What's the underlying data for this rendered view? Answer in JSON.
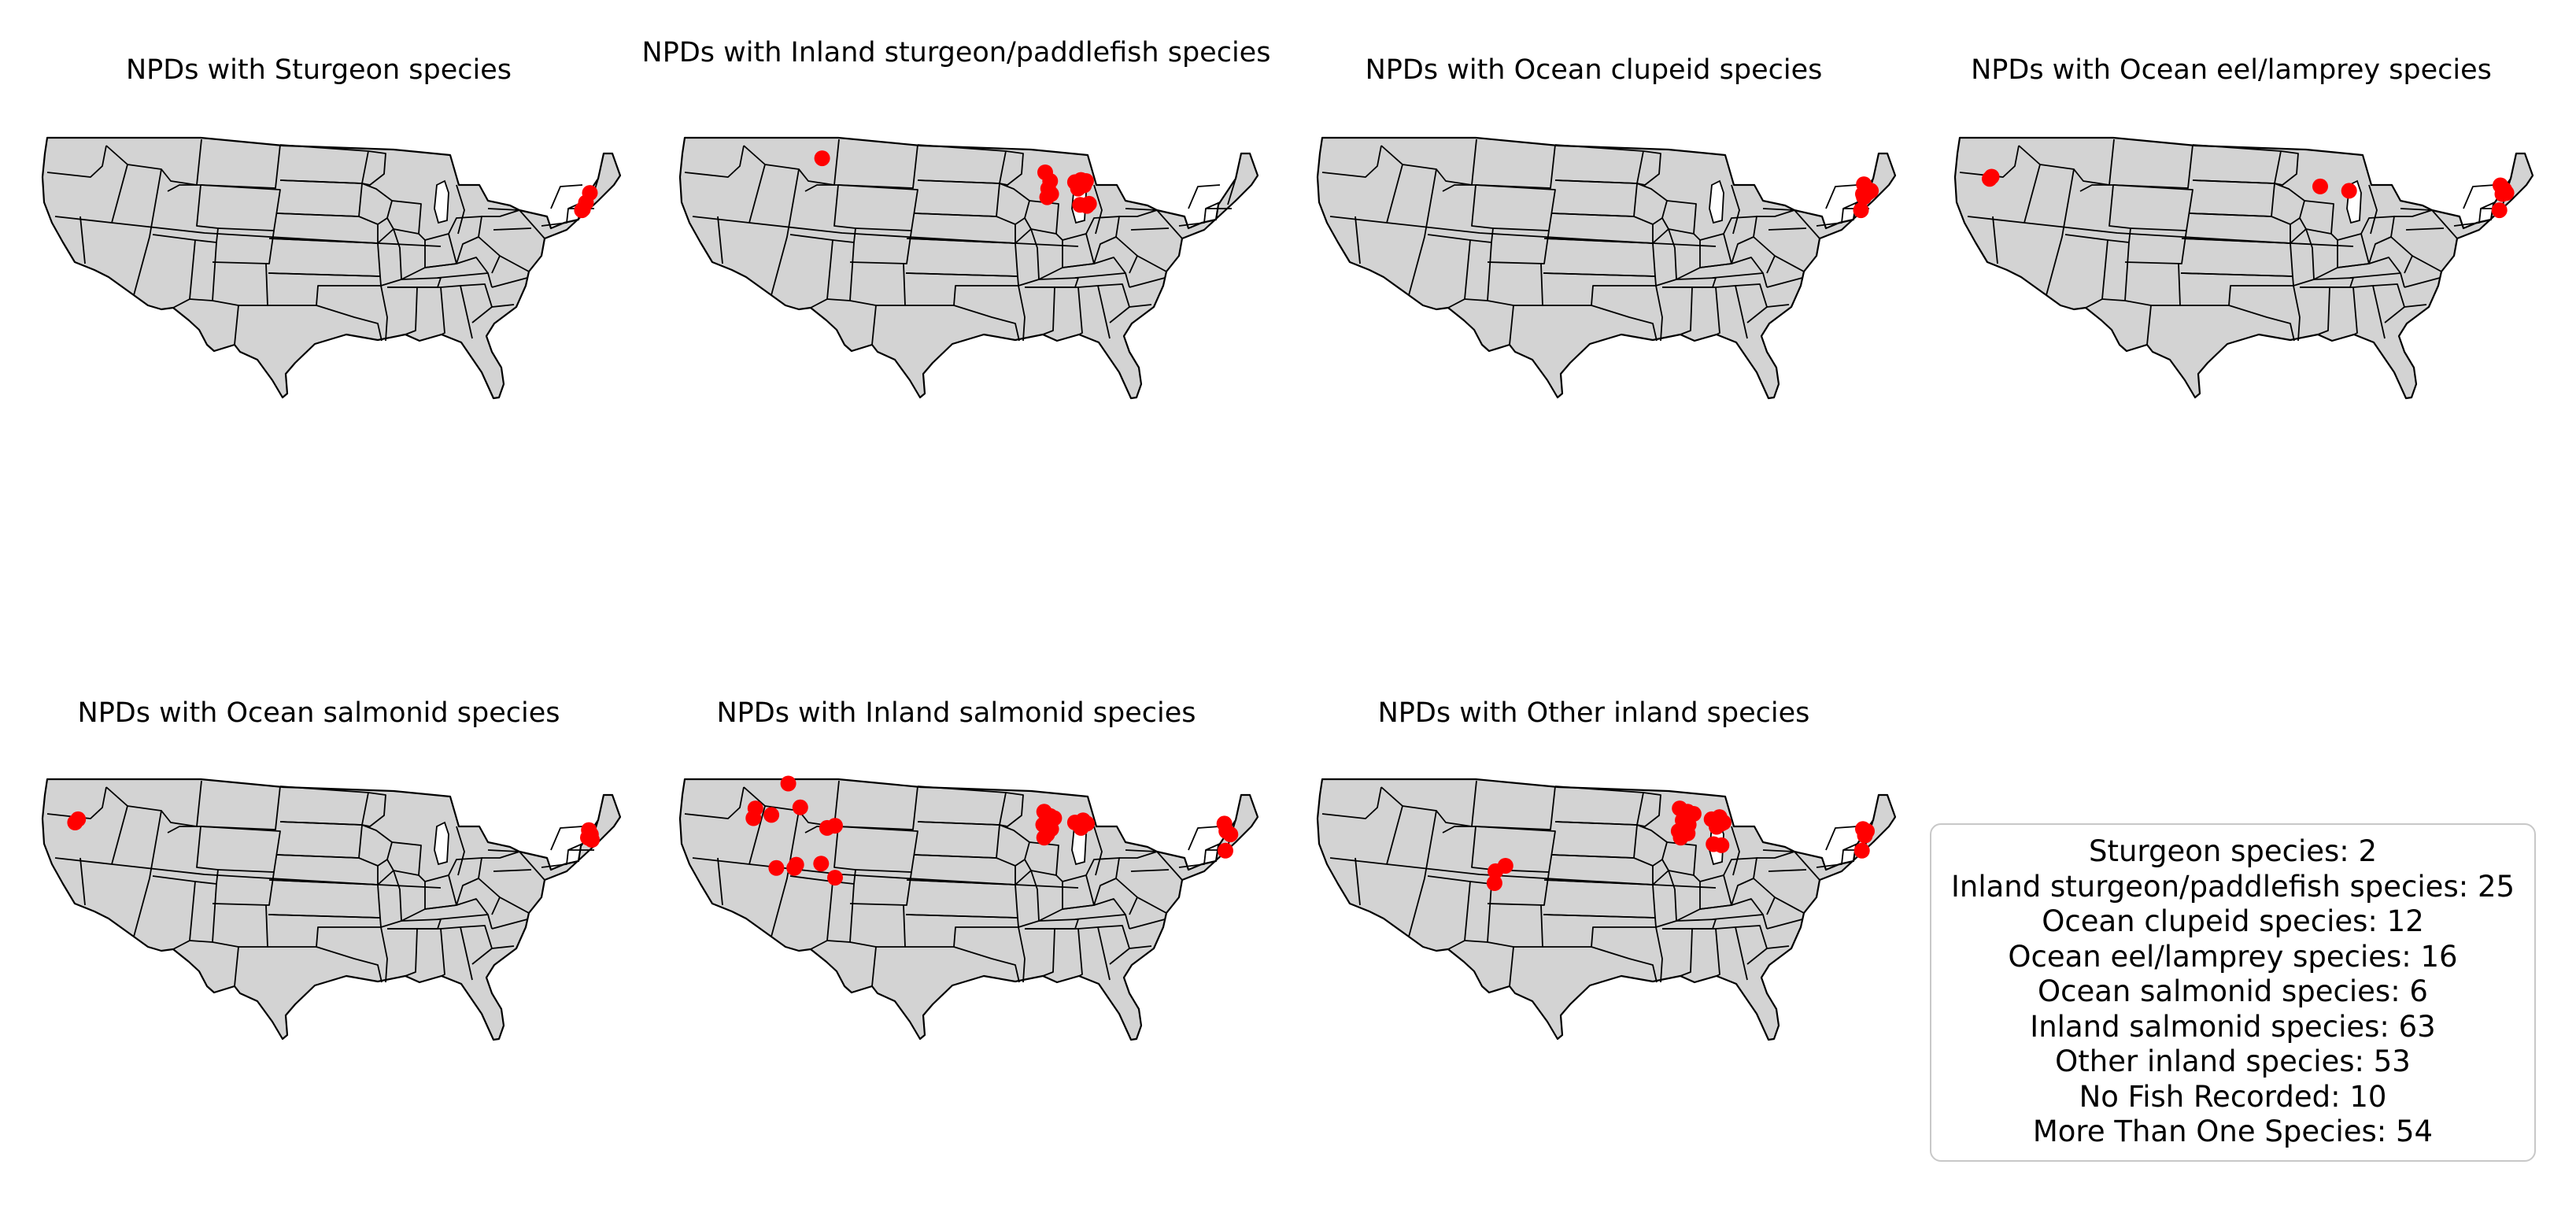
{
  "panels": [
    {
      "title": "NPDs with Sturgeon species",
      "points": [
        [
          -70.2,
          43.9
        ],
        [
          -70.6,
          43.0
        ],
        [
          -71.0,
          42.3
        ],
        [
          -70.9,
          42.4
        ]
      ]
    },
    {
      "title": "NPDs with Inland sturgeon/paddlefish species",
      "points": [
        [
          -110.9,
          47.1
        ],
        [
          -88.5,
          45.8
        ],
        [
          -88.0,
          45.0
        ],
        [
          -88.2,
          44.3
        ],
        [
          -87.9,
          43.8
        ],
        [
          -88.3,
          43.5
        ],
        [
          -85.5,
          44.9
        ],
        [
          -84.9,
          45.1
        ],
        [
          -84.4,
          45.0
        ],
        [
          -85.2,
          44.3
        ],
        [
          -84.6,
          44.6
        ],
        [
          -84.1,
          42.9
        ],
        [
          -85.0,
          42.8
        ],
        [
          -84.3,
          42.7
        ]
      ]
    },
    {
      "title": "NPDs with Ocean clupeid species",
      "points": [
        [
          -70.3,
          44.7
        ],
        [
          -70.0,
          44.3
        ],
        [
          -69.6,
          44.1
        ],
        [
          -70.4,
          43.8
        ],
        [
          -69.9,
          43.9
        ],
        [
          -70.3,
          43.5
        ],
        [
          -70.6,
          42.3
        ]
      ]
    },
    {
      "title": "NPDs with Ocean eel/lamprey species",
      "points": [
        [
          -121.5,
          45.4
        ],
        [
          -121.7,
          45.2
        ],
        [
          -88.5,
          44.5
        ],
        [
          -85.6,
          44.1
        ],
        [
          -70.4,
          44.6
        ],
        [
          -70.0,
          44.2
        ],
        [
          -70.2,
          43.8
        ],
        [
          -69.8,
          43.9
        ],
        [
          -70.5,
          42.3
        ]
      ]
    },
    {
      "title": "NPDs with Ocean salmonid species",
      "points": [
        [
          -121.6,
          45.3
        ],
        [
          -121.9,
          45.0
        ],
        [
          -70.3,
          44.3
        ],
        [
          -70.1,
          43.9
        ],
        [
          -70.4,
          43.6
        ],
        [
          -70.0,
          43.4
        ]
      ]
    },
    {
      "title": "NPDs with Inland salmonid species",
      "points": [
        [
          -114.3,
          48.6
        ],
        [
          -117.6,
          46.3
        ],
        [
          -116.0,
          45.7
        ],
        [
          -117.8,
          45.4
        ],
        [
          -113.1,
          46.4
        ],
        [
          -109.6,
          44.7
        ],
        [
          -110.4,
          44.5
        ],
        [
          -115.5,
          40.8
        ],
        [
          -113.5,
          41.1
        ],
        [
          -113.7,
          40.8
        ],
        [
          -111.0,
          41.2
        ],
        [
          -109.6,
          39.9
        ],
        [
          -88.6,
          46.0
        ],
        [
          -88.0,
          45.6
        ],
        [
          -87.6,
          45.4
        ],
        [
          -88.7,
          44.8
        ],
        [
          -87.9,
          44.4
        ],
        [
          -88.3,
          43.9
        ],
        [
          -88.6,
          43.6
        ],
        [
          -85.5,
          45.0
        ],
        [
          -84.7,
          45.2
        ],
        [
          -84.3,
          44.9
        ],
        [
          -84.9,
          44.5
        ],
        [
          -70.5,
          44.9
        ],
        [
          -70.3,
          44.2
        ],
        [
          -69.9,
          43.9
        ],
        [
          -70.4,
          42.4
        ]
      ]
    },
    {
      "title": "NPDs with Other inland species",
      "points": [
        [
          -106.3,
          41.0
        ],
        [
          -107.3,
          40.5
        ],
        [
          -107.4,
          39.4
        ],
        [
          -88.8,
          46.3
        ],
        [
          -88.0,
          46.0
        ],
        [
          -87.4,
          45.8
        ],
        [
          -88.5,
          45.2
        ],
        [
          -87.9,
          44.8
        ],
        [
          -88.9,
          44.2
        ],
        [
          -88.0,
          44.0
        ],
        [
          -88.7,
          43.6
        ],
        [
          -85.6,
          45.3
        ],
        [
          -84.8,
          45.5
        ],
        [
          -84.4,
          45.0
        ],
        [
          -85.1,
          44.6
        ],
        [
          -84.6,
          44.9
        ],
        [
          -85.4,
          43.0
        ],
        [
          -84.6,
          42.9
        ],
        [
          -70.4,
          44.4
        ],
        [
          -70.0,
          44.2
        ],
        [
          -70.2,
          43.8
        ],
        [
          -70.5,
          42.4
        ]
      ]
    }
  ],
  "summary": {
    "lines": [
      "Sturgeon species: 2",
      "Inland sturgeon/paddlefish species: 25",
      "Ocean clupeid species: 12",
      "Ocean eel/lamprey species: 16",
      "Ocean salmonid species: 6",
      "Inland salmonid species: 63",
      "Other inland species: 53",
      "No Fish Recorded: 10",
      "More Than One Species: 54"
    ]
  },
  "colors": {
    "land": "#d3d3d3",
    "border": "#000000",
    "point": "#ff0000"
  }
}
